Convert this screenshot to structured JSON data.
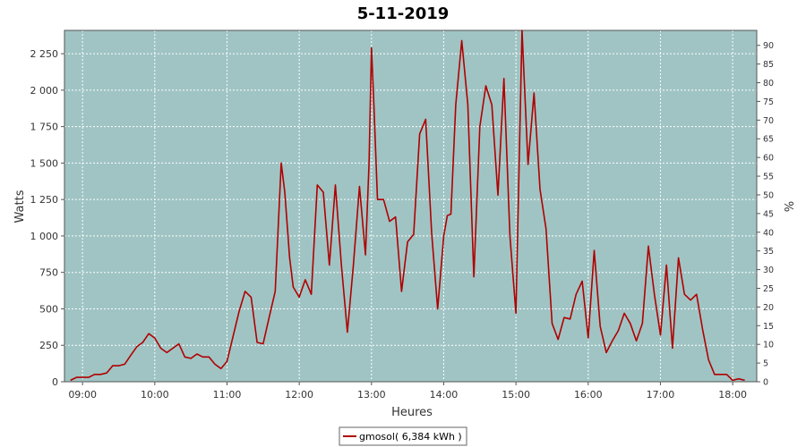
{
  "chart_data": {
    "type": "line",
    "title": "5-11-2019",
    "xlabel": "Heures",
    "ylabel": "Watts",
    "ylabel_right": "%",
    "ylim": [
      0,
      2410
    ],
    "ylim_right": [
      0,
      94
    ],
    "xlim": [
      "08:45",
      "18:20"
    ],
    "x_ticks": [
      "09:00",
      "10:00",
      "11:00",
      "12:00",
      "13:00",
      "14:00",
      "15:00",
      "16:00",
      "17:00",
      "18:00"
    ],
    "y_ticks": [
      {
        "value": 0,
        "label": "0"
      },
      {
        "value": 250,
        "label": "250"
      },
      {
        "value": 500,
        "label": "500"
      },
      {
        "value": 750,
        "label": "750"
      },
      {
        "value": 1000,
        "label": "1 000"
      },
      {
        "value": 1250,
        "label": "1 250"
      },
      {
        "value": 1500,
        "label": "1 500"
      },
      {
        "value": 1750,
        "label": "1 750"
      },
      {
        "value": 2000,
        "label": "2 000"
      },
      {
        "value": 2250,
        "label": "2 250"
      }
    ],
    "y_ticks_right": [
      "0",
      "5",
      "10",
      "15",
      "20",
      "25",
      "30",
      "35",
      "40",
      "45",
      "50",
      "55",
      "60",
      "65",
      "70",
      "75",
      "80",
      "85",
      "90"
    ],
    "grid": true,
    "legend_position": "bottom",
    "colors": {
      "plot_background": "#a0c4c4",
      "line": "#b00000",
      "grid": "#ffffff"
    },
    "series": [
      {
        "name": "gmosol( 6,384 kWh )",
        "x": [
          "08:50",
          "08:55",
          "09:00",
          "09:05",
          "09:10",
          "09:15",
          "09:20",
          "09:25",
          "09:30",
          "09:35",
          "09:40",
          "09:45",
          "09:50",
          "09:55",
          "10:00",
          "10:05",
          "10:10",
          "10:15",
          "10:20",
          "10:25",
          "10:30",
          "10:35",
          "10:40",
          "10:45",
          "10:50",
          "10:55",
          "11:00",
          "11:05",
          "11:10",
          "11:15",
          "11:20",
          "11:25",
          "11:30",
          "11:35",
          "11:40",
          "11:45",
          "11:48",
          "11:52",
          "11:55",
          "12:00",
          "12:05",
          "12:10",
          "12:15",
          "12:20",
          "12:25",
          "12:30",
          "12:35",
          "12:40",
          "12:45",
          "12:50",
          "12:55",
          "12:58",
          "13:00",
          "13:02",
          "13:05",
          "13:10",
          "13:15",
          "13:20",
          "13:25",
          "13:30",
          "13:35",
          "13:40",
          "13:45",
          "13:50",
          "13:55",
          "14:00",
          "14:03",
          "14:06",
          "14:10",
          "14:15",
          "14:20",
          "14:25",
          "14:30",
          "14:35",
          "14:40",
          "14:45",
          "14:50",
          "14:55",
          "15:00",
          "15:05",
          "15:10",
          "15:15",
          "15:20",
          "15:25",
          "15:30",
          "15:35",
          "15:40",
          "15:45",
          "15:50",
          "15:55",
          "16:00",
          "16:05",
          "16:10",
          "16:15",
          "16:20",
          "16:25",
          "16:30",
          "16:35",
          "16:40",
          "16:45",
          "16:50",
          "16:55",
          "17:00",
          "17:05",
          "17:10",
          "17:15",
          "17:20",
          "17:25",
          "17:30",
          "17:35",
          "17:40",
          "17:45",
          "17:50",
          "17:55",
          "18:00",
          "18:05",
          "18:10"
        ],
        "values": [
          10,
          30,
          30,
          30,
          50,
          50,
          60,
          110,
          110,
          120,
          180,
          240,
          270,
          330,
          300,
          230,
          200,
          230,
          260,
          170,
          160,
          190,
          170,
          170,
          120,
          90,
          140,
          310,
          480,
          620,
          580,
          270,
          260,
          440,
          620,
          1500,
          1300,
          850,
          650,
          580,
          700,
          600,
          1350,
          1300,
          800,
          1350,
          800,
          340,
          800,
          1340,
          870,
          1500,
          2290,
          1900,
          1250,
          1250,
          1100,
          1130,
          620,
          960,
          1010,
          1700,
          1800,
          1020,
          500,
          1000,
          1140,
          1150,
          1900,
          2340,
          1900,
          720,
          1750,
          2030,
          1900,
          1280,
          2080,
          1000,
          470,
          2410,
          1490,
          1980,
          1320,
          1050,
          400,
          290,
          440,
          430,
          600,
          690,
          300,
          900,
          380,
          200,
          280,
          350,
          470,
          400,
          280,
          400,
          930,
          600,
          320,
          800,
          230,
          850,
          600,
          560,
          600,
          360,
          150,
          50,
          50,
          50,
          10,
          20,
          10
        ]
      }
    ]
  }
}
